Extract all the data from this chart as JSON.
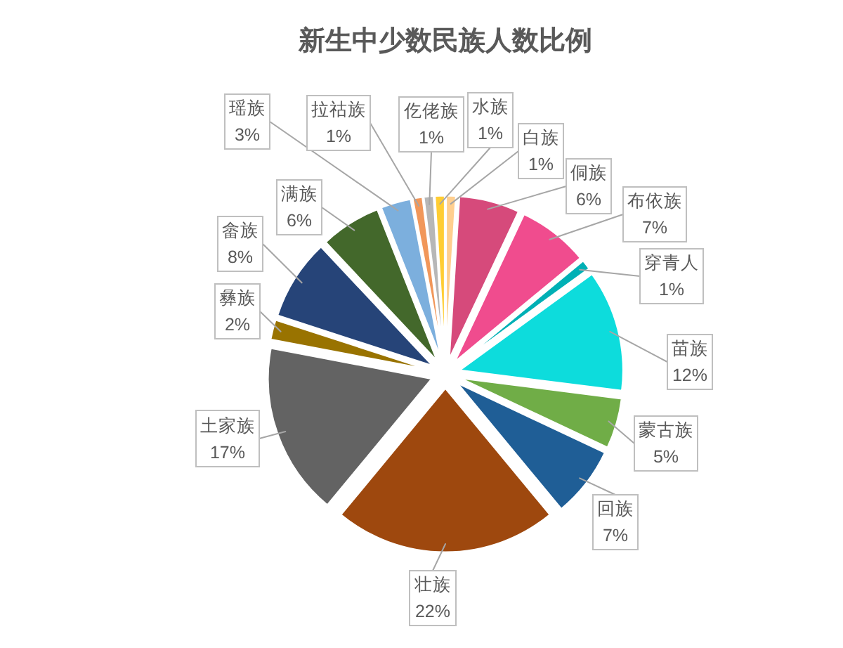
{
  "chart_data": {
    "type": "pie",
    "title": "新生中少数民族人数比例",
    "categories": [
      "白族",
      "侗族",
      "布依族",
      "穿青人",
      "苗族",
      "蒙古族",
      "回族",
      "壮族",
      "土家族",
      "彝族",
      "畲族",
      "满族",
      "瑶族",
      "拉祜族",
      "仡佬族",
      "水族"
    ],
    "values": [
      1,
      6,
      7,
      1,
      12,
      5,
      7,
      22,
      17,
      2,
      8,
      6,
      3,
      1,
      1,
      1
    ],
    "value_labels": [
      "1%",
      "6%",
      "7%",
      "1%",
      "12%",
      "5%",
      "7%",
      "22%",
      "17%",
      "2%",
      "8%",
      "6%",
      "3%",
      "1%",
      "1%",
      "1%"
    ],
    "colors": [
      "#ffcf8f",
      "#d64a7b",
      "#f04c8e",
      "#00b0b5",
      "#0ddcdc",
      "#70ad47",
      "#1f5e96",
      "#9e480e",
      "#636363",
      "#997300",
      "#264478",
      "#43682b",
      "#7cafdd",
      "#f1975a",
      "#b7b7b7",
      "#ffcd33"
    ]
  }
}
